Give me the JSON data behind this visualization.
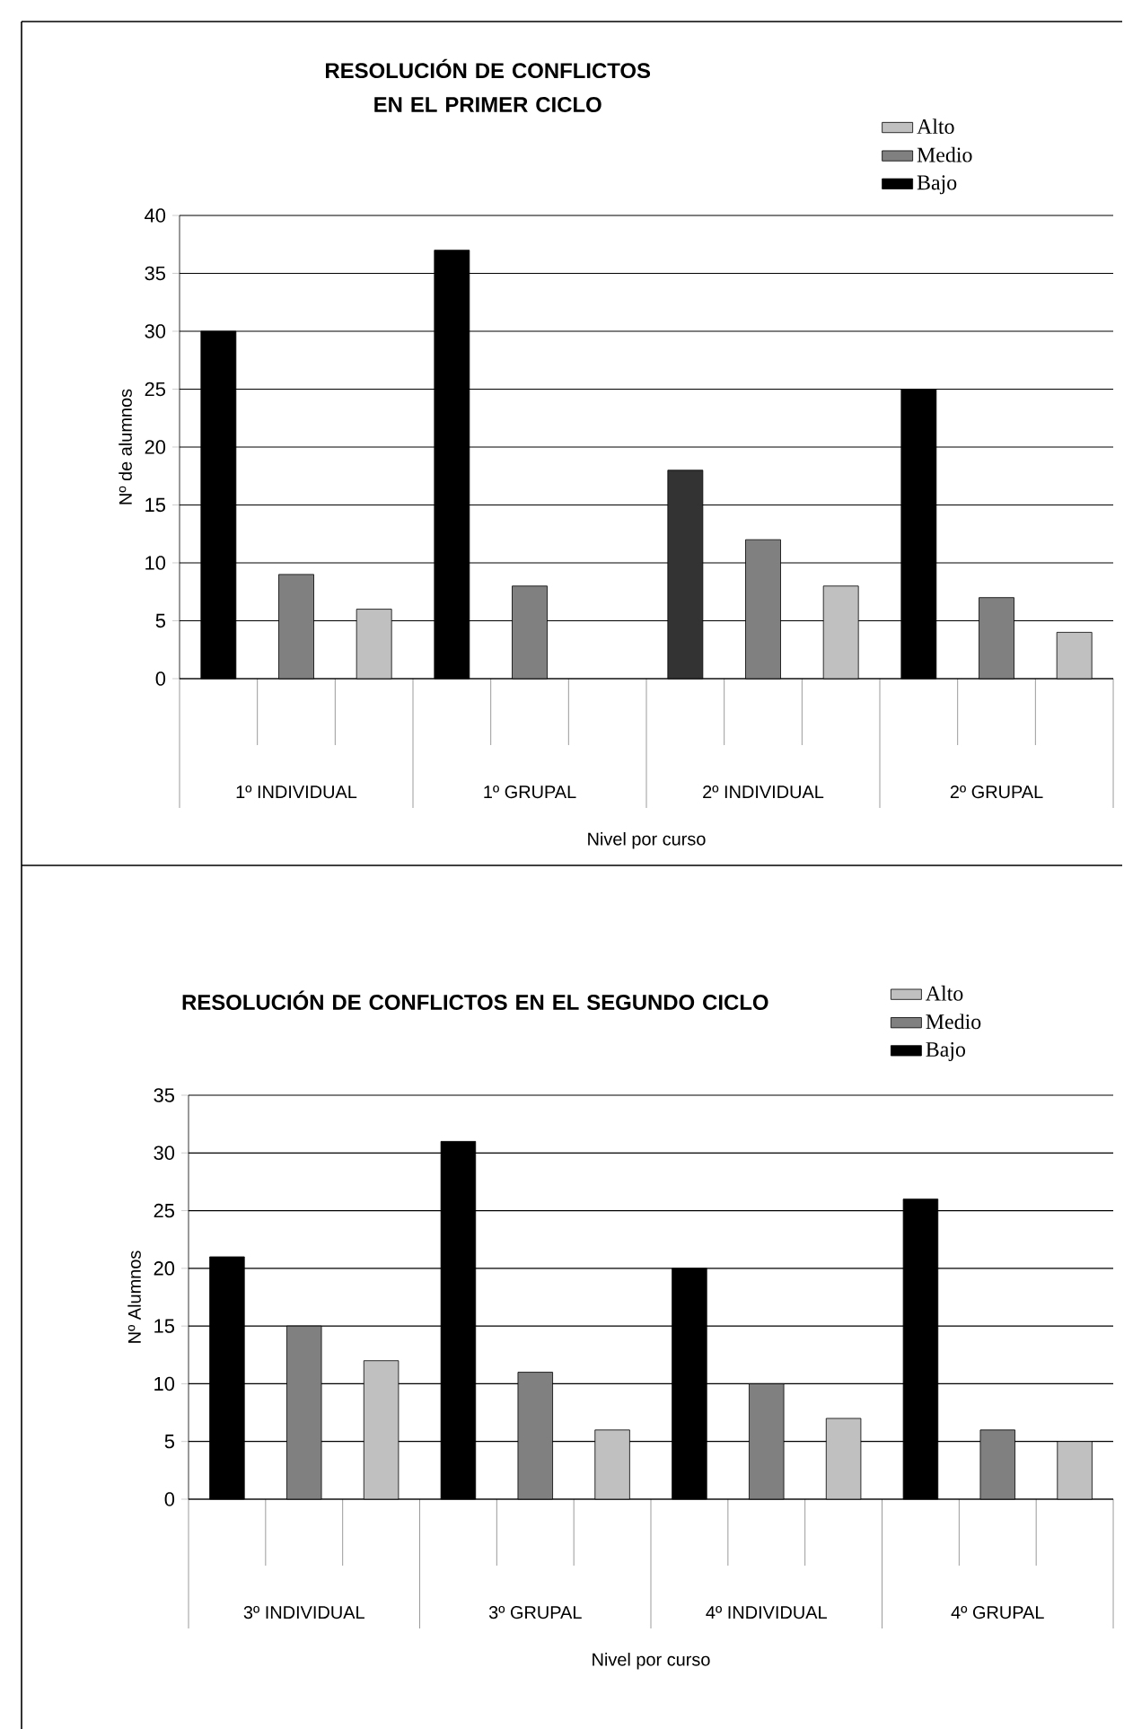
{
  "chart_data": [
    {
      "type": "bar",
      "title": "RESOLUCIÓN DE CONFLICTOS EN EL PRIMER CICLO",
      "xlabel": "Nivel por curso",
      "ylabel": "Nº de alumnos",
      "categories": [
        "1º INDIVIDUAL",
        "1º GRUPAL",
        "2º INDIVIDUAL",
        "2º GRUPAL"
      ],
      "series": [
        {
          "name": "Bajo",
          "color": "#000000",
          "colors": [
            "#000000",
            "#000000",
            "#333333",
            "#000000"
          ],
          "values": [
            30,
            37,
            18,
            25
          ]
        },
        {
          "name": "Medio",
          "color": "#808080",
          "values": [
            9,
            8,
            12,
            7
          ]
        },
        {
          "name": "Alto",
          "color": "#c0c0c0",
          "values": [
            6,
            null,
            8,
            4
          ]
        }
      ],
      "ylim": [
        0,
        40
      ],
      "yticks": [
        0,
        5,
        10,
        15,
        20,
        25,
        30,
        35,
        40
      ],
      "grid": "y",
      "legend": "top right"
    },
    {
      "type": "bar",
      "title": "RESOLUCIÓN DE CONFLICTOS EN EL SEGUNDO CICLO",
      "xlabel": "Nivel por curso",
      "ylabel": "Nº Alumnos",
      "categories": [
        "3º INDIVIDUAL",
        "3º GRUPAL",
        "4º INDIVIDUAL",
        "4º GRUPAL"
      ],
      "series": [
        {
          "name": "Bajo",
          "color": "#000000",
          "values": [
            21,
            31,
            20,
            26
          ]
        },
        {
          "name": "Medio",
          "color": "#808080",
          "values": [
            15,
            11,
            10,
            6
          ]
        },
        {
          "name": "Alto",
          "color": "#c0c0c0",
          "values": [
            12,
            6,
            7,
            5
          ]
        }
      ],
      "ylim": [
        0,
        35
      ],
      "yticks": [
        0,
        5,
        10,
        15,
        20,
        25,
        30,
        35
      ],
      "grid": "y",
      "legend": "top right"
    }
  ]
}
